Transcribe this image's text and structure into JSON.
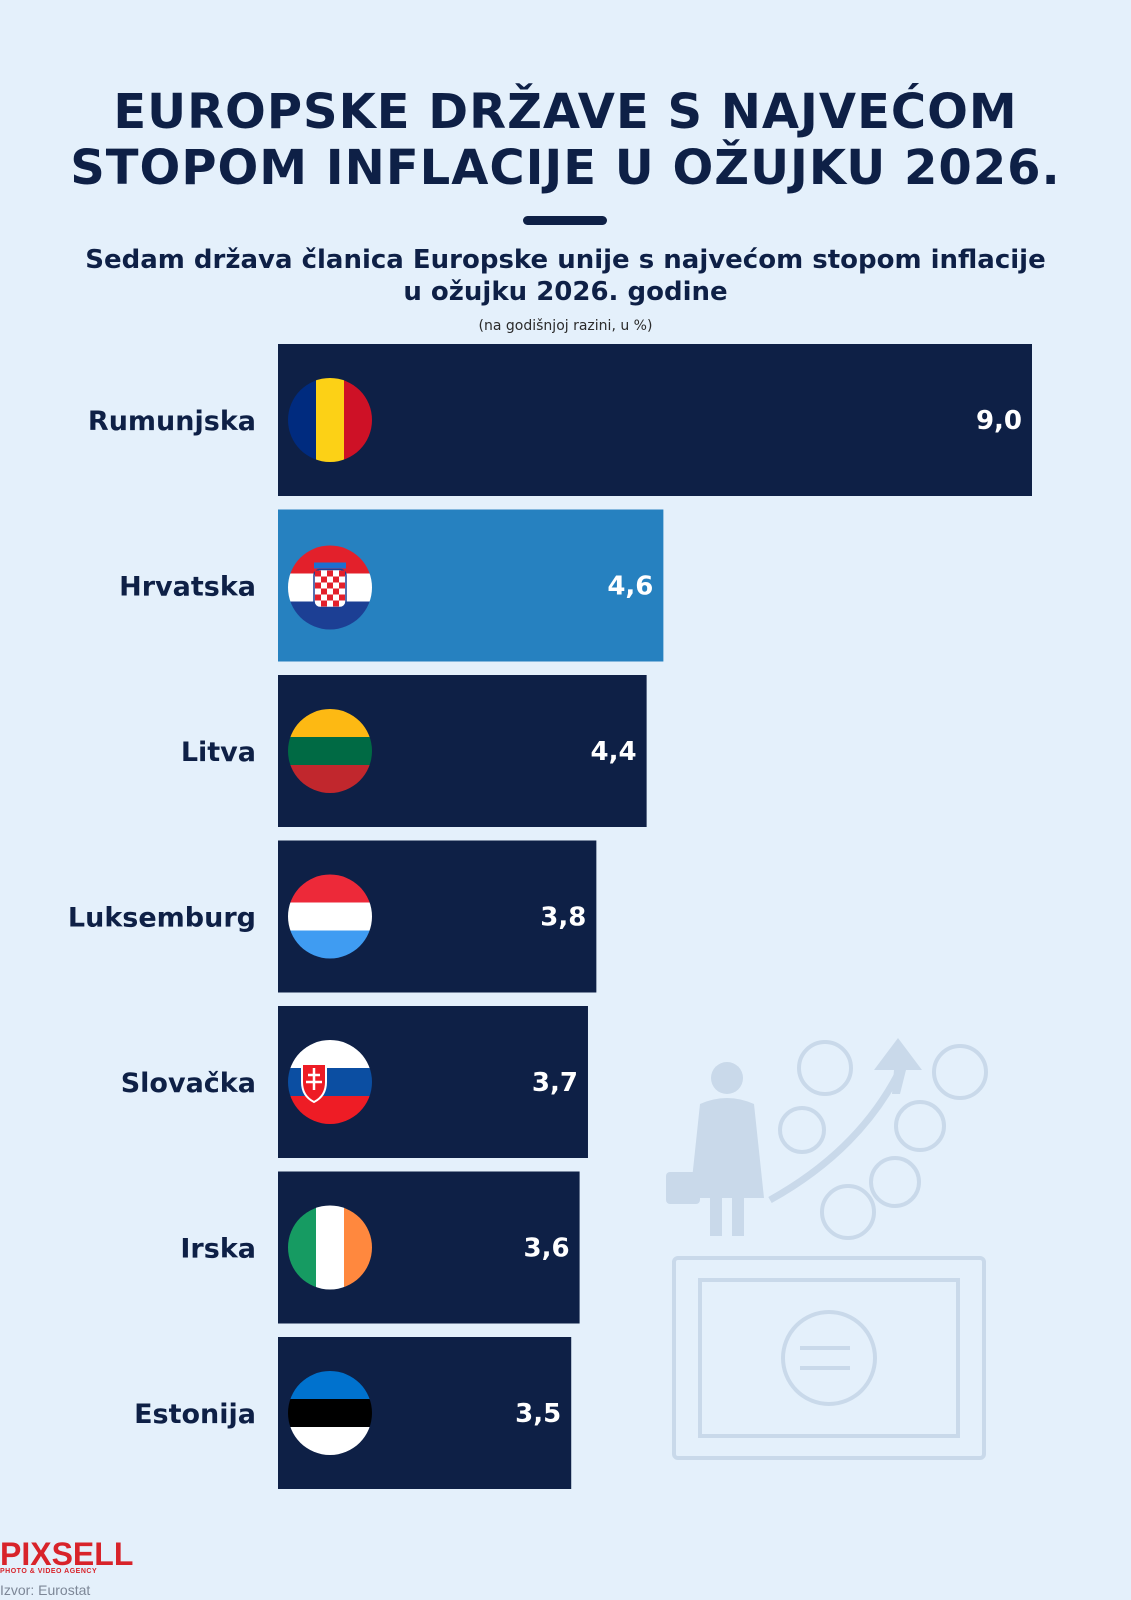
{
  "header": {
    "title_line1": "EUROPSKE DRŽAVE S NAJVEĆOM",
    "title_line2": "STOPOM INFLACIJE U OŽUJKU 2026.",
    "subtitle_line1": "Sedam država članica Europske unije s najvećom stopom inflacije",
    "subtitle_line2": "u ožujku 2026. godine",
    "unit_note": "(na godišnjoj razini, u %)"
  },
  "chart_data": {
    "type": "bar",
    "orientation": "horizontal",
    "categories": [
      "Rumunjska",
      "Hrvatska",
      "Litva",
      "Luksemburg",
      "Slovačka",
      "Irska",
      "Estonija"
    ],
    "values": [
      9.0,
      4.6,
      4.4,
      3.8,
      3.7,
      3.6,
      3.5
    ],
    "value_labels": [
      "9,0",
      "4,6",
      "4,4",
      "3,8",
      "3,7",
      "3,6",
      "3,5"
    ],
    "flags": [
      "romania-flag",
      "croatia-flag",
      "lithuania-flag",
      "luxembourg-flag",
      "slovakia-flag",
      "ireland-flag",
      "estonia-flag"
    ],
    "highlight_index": 1,
    "bar_color": "#0e2046",
    "highlight_color": "#2681c0",
    "xlim": [
      0,
      9.0
    ]
  },
  "footer": {
    "logo_text": "PIXSELL",
    "logo_subtext": "PHOTO & VIDEO AGENCY",
    "source": "Izvor: Eurostat"
  }
}
